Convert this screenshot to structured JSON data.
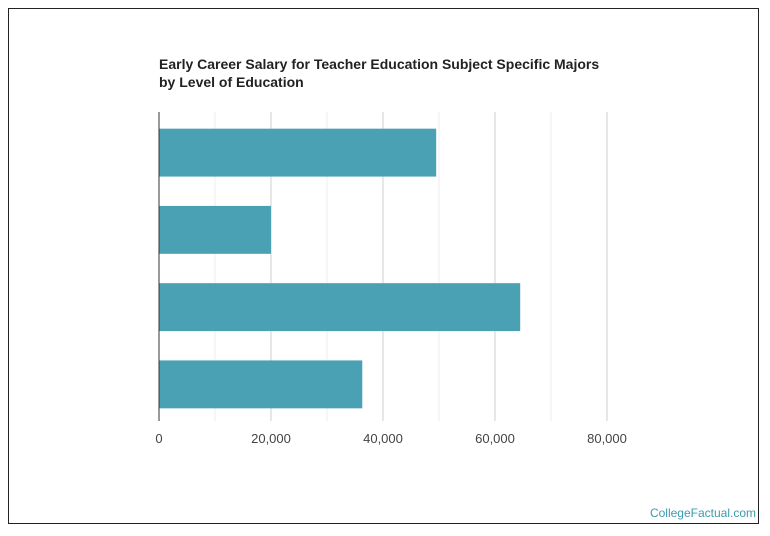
{
  "chart_data": {
    "type": "bar",
    "orientation": "horizontal",
    "title": "Early Career Salary for Teacher Education Subject Specific Majors by Level of Education",
    "categories": [
      "",
      "",
      "",
      ""
    ],
    "values": [
      49500,
      20000,
      64500,
      36300
    ],
    "xlim": [
      0,
      90000
    ],
    "xticks": [
      0,
      20000,
      40000,
      60000,
      80000
    ],
    "xtick_labels": [
      "0",
      "20,000",
      "40,000",
      "60,000",
      "80,000"
    ],
    "grid": true,
    "bar_color": "#4aa1b3",
    "grid_color": "#d8d8d8"
  },
  "watermark": "CollegeFactual.com"
}
